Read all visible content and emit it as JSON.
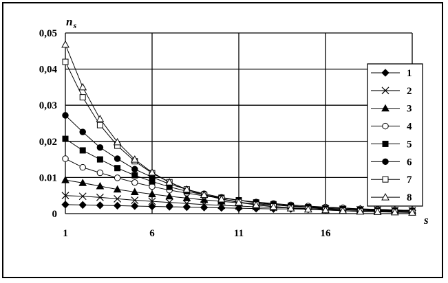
{
  "chart_data": {
    "type": "line",
    "title": "",
    "xlabel": "s",
    "ylabel": "n_s",
    "ylabel_main": "n",
    "ylabel_sub": "s",
    "xlim": [
      1,
      21
    ],
    "ylim": [
      0,
      0.05
    ],
    "x_ticks": [
      1,
      6,
      11,
      16
    ],
    "x_tick_labels": [
      "1",
      "6",
      "11",
      "16"
    ],
    "y_ticks": [
      0,
      0.01,
      0.02,
      0.03,
      0.04,
      0.05
    ],
    "y_tick_labels": [
      "0",
      "0.01",
      "0,02",
      "0,03",
      "0,04",
      "0,05"
    ],
    "grid": true,
    "legend_position": "right",
    "x": [
      1,
      2,
      3,
      4,
      5,
      6,
      7,
      8,
      9,
      10,
      11,
      12,
      13,
      14,
      15,
      16,
      17,
      18,
      19,
      20,
      21
    ],
    "series": [
      {
        "name": "1",
        "marker": "diamond-filled",
        "values": [
          0.0025,
          0.0024,
          0.0023,
          0.0022,
          0.0021,
          0.002,
          0.0019,
          0.0018,
          0.0017,
          0.0016,
          0.0015,
          0.0014,
          0.0013,
          0.0013,
          0.0012,
          0.0011,
          0.0011,
          0.001,
          0.001,
          0.0009,
          0.0009
        ]
      },
      {
        "name": "2",
        "marker": "x",
        "values": [
          0.005,
          0.0048,
          0.0045,
          0.0041,
          0.0037,
          0.0034,
          0.0031,
          0.0028,
          0.0025,
          0.0023,
          0.0021,
          0.0019,
          0.0017,
          0.0016,
          0.0014,
          0.0013,
          0.0012,
          0.0011,
          0.001,
          0.0009,
          0.0008
        ]
      },
      {
        "name": "3",
        "marker": "triangle-filled",
        "values": [
          0.0093,
          0.0085,
          0.0076,
          0.0067,
          0.006,
          0.0054,
          0.0048,
          0.0043,
          0.0038,
          0.0034,
          0.003,
          0.0027,
          0.0024,
          0.0021,
          0.0019,
          0.0017,
          0.0015,
          0.0013,
          0.0012,
          0.001,
          0.0009
        ]
      },
      {
        "name": "4",
        "marker": "circle-open",
        "values": [
          0.0152,
          0.0128,
          0.0113,
          0.0099,
          0.0086,
          0.0075,
          0.0065,
          0.0057,
          0.0049,
          0.0043,
          0.0037,
          0.0032,
          0.0028,
          0.0024,
          0.0021,
          0.0018,
          0.0016,
          0.0013,
          0.0012,
          0.001,
          0.0009
        ]
      },
      {
        "name": "5",
        "marker": "square-filled",
        "values": [
          0.0207,
          0.0175,
          0.015,
          0.0126,
          0.0106,
          0.0089,
          0.0074,
          0.0062,
          0.0052,
          0.0044,
          0.0037,
          0.0031,
          0.0026,
          0.0022,
          0.0018,
          0.0015,
          0.0013,
          0.0011,
          0.0009,
          0.0008,
          0.0007
        ]
      },
      {
        "name": "6",
        "marker": "circle-filled",
        "values": [
          0.0272,
          0.0226,
          0.0183,
          0.0152,
          0.0123,
          0.0101,
          0.0082,
          0.0067,
          0.0055,
          0.0045,
          0.0037,
          0.003,
          0.0025,
          0.002,
          0.0017,
          0.0014,
          0.0011,
          0.0009,
          0.0008,
          0.0006,
          0.0005
        ]
      },
      {
        "name": "7",
        "marker": "square-open",
        "values": [
          0.042,
          0.0322,
          0.0245,
          0.0188,
          0.0145,
          0.0112,
          0.0087,
          0.0067,
          0.0052,
          0.0041,
          0.0032,
          0.0025,
          0.002,
          0.0016,
          0.0013,
          0.001,
          0.0008,
          0.0007,
          0.0006,
          0.0005,
          0.0004
        ]
      },
      {
        "name": "8",
        "marker": "triangle-open",
        "values": [
          0.0468,
          0.035,
          0.0262,
          0.0198,
          0.015,
          0.0114,
          0.0087,
          0.0067,
          0.0052,
          0.004,
          0.0031,
          0.0024,
          0.0019,
          0.0015,
          0.0012,
          0.001,
          0.0008,
          0.0006,
          0.0005,
          0.0004,
          0.0003
        ]
      }
    ]
  },
  "colors": {
    "line": "#000000",
    "grid": "#000000",
    "background": "#ffffff"
  }
}
